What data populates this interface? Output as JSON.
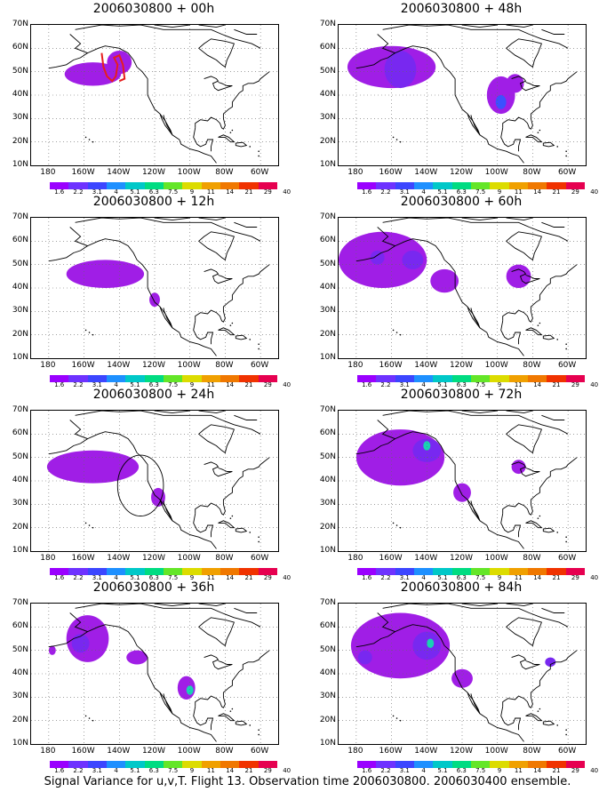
{
  "panels": [
    {
      "title": "2006030800 + 00h",
      "blobs": [
        {
          "lon": -155,
          "lat": 49,
          "rx": 16,
          "ry": 5,
          "level": 0
        },
        {
          "lon": -140,
          "lat": 54,
          "rx": 7,
          "ry": 5,
          "level": 0
        }
      ],
      "track": true
    },
    {
      "title": "2006030800 + 48h",
      "blobs": [
        {
          "lon": -160,
          "lat": 52,
          "rx": 25,
          "ry": 9,
          "level": 0
        },
        {
          "lon": -155,
          "lat": 51,
          "rx": 9,
          "ry": 8,
          "level": 1
        },
        {
          "lon": -98,
          "lat": 40,
          "rx": 8,
          "ry": 8,
          "level": 0
        },
        {
          "lon": -98,
          "lat": 37,
          "rx": 3,
          "ry": 3,
          "level": 2
        },
        {
          "lon": -90,
          "lat": 45,
          "rx": 5,
          "ry": 4,
          "level": 0
        }
      ]
    },
    {
      "title": "2006030800 + 12h",
      "blobs": [
        {
          "lon": -148,
          "lat": 46,
          "rx": 22,
          "ry": 6,
          "level": 0
        },
        {
          "lon": -120,
          "lat": 35,
          "rx": 3,
          "ry": 3,
          "level": 0
        }
      ]
    },
    {
      "title": "2006030800 + 60h",
      "blobs": [
        {
          "lon": -165,
          "lat": 52,
          "rx": 25,
          "ry": 12,
          "level": 0
        },
        {
          "lon": -148,
          "lat": 52,
          "rx": 6,
          "ry": 4,
          "level": 1
        },
        {
          "lon": -168,
          "lat": 53,
          "rx": 4,
          "ry": 3,
          "level": 1
        },
        {
          "lon": -130,
          "lat": 43,
          "rx": 8,
          "ry": 5,
          "level": 0
        },
        {
          "lon": -88,
          "lat": 45,
          "rx": 7,
          "ry": 5,
          "level": 0
        }
      ]
    },
    {
      "title": "2006030800 + 24h",
      "blobs": [
        {
          "lon": -155,
          "lat": 46,
          "rx": 26,
          "ry": 7,
          "level": 0
        },
        {
          "lon": -118,
          "lat": 33,
          "rx": 4,
          "ry": 4,
          "level": 0
        }
      ],
      "circle": {
        "lon": -128,
        "lat": 38,
        "r": 13
      }
    },
    {
      "title": "2006030800 + 72h",
      "blobs": [
        {
          "lon": -155,
          "lat": 50,
          "rx": 25,
          "ry": 12,
          "level": 0
        },
        {
          "lon": -140,
          "lat": 53,
          "rx": 8,
          "ry": 5,
          "level": 1
        },
        {
          "lon": -140,
          "lat": 55,
          "rx": 2,
          "ry": 2,
          "level": 3
        },
        {
          "lon": -120,
          "lat": 35,
          "rx": 5,
          "ry": 4,
          "level": 0
        },
        {
          "lon": -88,
          "lat": 46,
          "rx": 4,
          "ry": 3,
          "level": 0
        }
      ]
    },
    {
      "title": "2006030800 + 36h",
      "blobs": [
        {
          "lon": -158,
          "lat": 55,
          "rx": 12,
          "ry": 10,
          "level": 0
        },
        {
          "lon": -162,
          "lat": 53,
          "rx": 5,
          "ry": 4,
          "level": 1
        },
        {
          "lon": -130,
          "lat": 47,
          "rx": 6,
          "ry": 3,
          "level": 0
        },
        {
          "lon": -102,
          "lat": 34,
          "rx": 5,
          "ry": 5,
          "level": 0
        },
        {
          "lon": -100,
          "lat": 33,
          "rx": 2,
          "ry": 2,
          "level": 3
        },
        {
          "lon": -178,
          "lat": 50,
          "rx": 2,
          "ry": 2,
          "level": 0
        }
      ]
    },
    {
      "title": "2006030800 + 84h",
      "blobs": [
        {
          "lon": -155,
          "lat": 52,
          "rx": 28,
          "ry": 14,
          "level": 0
        },
        {
          "lon": -140,
          "lat": 52,
          "rx": 8,
          "ry": 6,
          "level": 1
        },
        {
          "lon": -138,
          "lat": 53,
          "rx": 2,
          "ry": 2,
          "level": 3
        },
        {
          "lon": -175,
          "lat": 47,
          "rx": 4,
          "ry": 3,
          "level": 1
        },
        {
          "lon": -120,
          "lat": 38,
          "rx": 6,
          "ry": 4,
          "level": 0
        },
        {
          "lon": -70,
          "lat": 45,
          "rx": 3,
          "ry": 2,
          "level": 1
        }
      ]
    }
  ],
  "axes": {
    "ylabels": [
      "70N",
      "60N",
      "50N",
      "40N",
      "30N",
      "20N",
      "10N"
    ],
    "xlabels": [
      "180",
      "160W",
      "140W",
      "120W",
      "100W",
      "80W",
      "60W"
    ]
  },
  "colorbar": {
    "colors": [
      "#9a00ff",
      "#6e32ff",
      "#3c46ff",
      "#1e90ff",
      "#00c8c8",
      "#00dc82",
      "#64e628",
      "#dcdc00",
      "#f0a000",
      "#f07800",
      "#f03200",
      "#e60050"
    ],
    "ticks": [
      "1.6",
      "2.2",
      "3.1",
      "4",
      "5.1",
      "6.3",
      "7.5",
      "9",
      "11",
      "14",
      "21",
      "29",
      "40"
    ]
  },
  "fill_colors": [
    "#a01ee6",
    "#7828f0",
    "#3c50ff",
    "#18d2b4"
  ],
  "caption": "Signal Variance for u,v,T. Flight 13. Observation time 2006030800. 2006030400 ensemble."
}
